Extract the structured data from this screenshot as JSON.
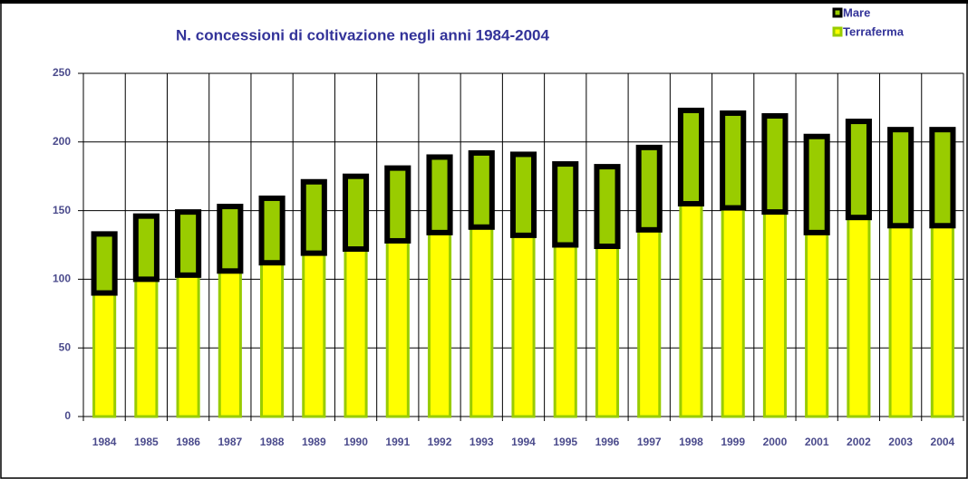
{
  "chart_data": {
    "type": "stacked-bar",
    "title": "N. concessioni di coltivazione negli anni 1984-2004",
    "categories": [
      "1984",
      "1985",
      "1986",
      "1987",
      "1988",
      "1989",
      "1990",
      "1991",
      "1992",
      "1993",
      "1994",
      "1995",
      "1996",
      "1997",
      "1998",
      "1999",
      "2000",
      "2001",
      "2002",
      "2003",
      "2004"
    ],
    "series": [
      {
        "name": "Mare",
        "color": "#99cc00",
        "edgecolor": "#000000",
        "values": [
          43,
          46,
          46,
          47,
          47,
          52,
          53,
          53,
          55,
          54,
          59,
          59,
          58,
          60,
          68,
          69,
          70,
          70,
          70,
          70,
          70
        ]
      },
      {
        "name": "Terraferma",
        "color": "#ffff00",
        "edgecolor": "#99cc00",
        "values": [
          90,
          100,
          103,
          106,
          112,
          119,
          122,
          128,
          134,
          138,
          132,
          125,
          124,
          136,
          155,
          152,
          149,
          134,
          145,
          139,
          139
        ]
      }
    ],
    "ylim": [
      0,
      250
    ],
    "yticks": [
      0,
      50,
      100,
      150,
      200,
      250
    ],
    "grid": true,
    "legend": "upper right"
  }
}
